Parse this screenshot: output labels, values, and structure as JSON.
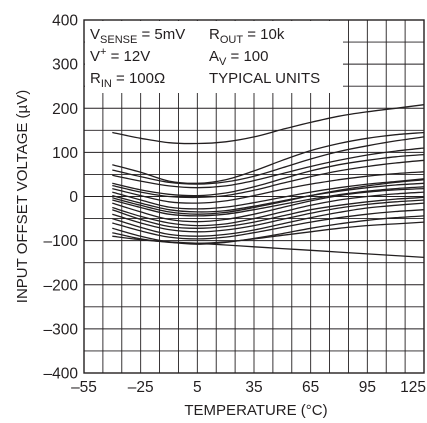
{
  "chart_data": {
    "type": "line",
    "xlabel": "TEMPERATURE (°C)",
    "ylabel": "INPUT OFFSET VOLTAGE (µV)",
    "xlim": [
      -55,
      125
    ],
    "ylim": [
      -400,
      400
    ],
    "x_ticks": [
      "–55",
      "–25",
      "5",
      "35",
      "65",
      "95",
      "125"
    ],
    "y_ticks": [
      "400",
      "300",
      "200",
      "100",
      "0",
      "–100",
      "–200",
      "–300",
      "–400"
    ],
    "grid": true,
    "legend": "none",
    "conditions": [
      {
        "name": "V",
        "sub": "SENSE",
        "sup": "",
        "value": " = 5mV"
      },
      {
        "name": "R",
        "sub": "OUT",
        "sup": "",
        "value": " = 10k"
      },
      {
        "name": "V",
        "sub": "",
        "sup": "+",
        "value": " = 12V"
      },
      {
        "name": "A",
        "sub": "V",
        "sup": "",
        "value": " = 100"
      },
      {
        "name": "R",
        "sub": "IN",
        "sup": "",
        "value": " = 100Ω"
      },
      {
        "name": "",
        "sub": "",
        "sup": "",
        "value": "TYPICAL UNITS"
      }
    ],
    "x": [
      -40,
      -25,
      -10,
      5,
      20,
      35,
      50,
      65,
      80,
      95,
      110,
      125
    ],
    "series": [
      {
        "values": [
          145,
          132,
          122,
          120,
          124,
          135,
          152,
          168,
          182,
          192,
          200,
          208
        ]
      },
      {
        "values": [
          72,
          55,
          35,
          30,
          38,
          58,
          82,
          104,
          120,
          132,
          140,
          145
        ]
      },
      {
        "values": [
          60,
          45,
          32,
          28,
          33,
          46,
          65,
          85,
          102,
          115,
          126,
          135
        ]
      },
      {
        "values": [
          48,
          35,
          24,
          20,
          24,
          36,
          52,
          68,
          82,
          94,
          103,
          110
        ]
      },
      {
        "values": [
          25,
          10,
          0,
          -2,
          2,
          14,
          30,
          45,
          58,
          68,
          76,
          82
        ]
      },
      {
        "values": [
          18,
          2,
          -12,
          -15,
          -10,
          2,
          16,
          28,
          38,
          46,
          52,
          56
        ]
      },
      {
        "values": [
          10,
          -8,
          -24,
          -28,
          -24,
          -14,
          -2,
          10,
          20,
          28,
          34,
          40
        ]
      },
      {
        "values": [
          2,
          -15,
          -30,
          -35,
          -32,
          -22,
          -10,
          2,
          12,
          20,
          26,
          30
        ]
      },
      {
        "values": [
          -8,
          -25,
          -40,
          -44,
          -40,
          -30,
          -18,
          -6,
          4,
          12,
          18,
          22
        ]
      },
      {
        "values": [
          -15,
          -35,
          -52,
          -57,
          -52,
          -40,
          -25,
          -10,
          2,
          10,
          15,
          18
        ]
      },
      {
        "values": [
          -25,
          -45,
          -60,
          -66,
          -62,
          -50,
          -35,
          -20,
          -8,
          0,
          6,
          10
        ]
      },
      {
        "values": [
          -30,
          -52,
          -68,
          -72,
          -68,
          -58,
          -44,
          -30,
          -20,
          -12,
          -6,
          -2
        ]
      },
      {
        "values": [
          -40,
          -60,
          -75,
          -80,
          -76,
          -66,
          -52,
          -38,
          -26,
          -18,
          -12,
          -8
        ]
      },
      {
        "values": [
          -50,
          -70,
          -86,
          -90,
          -86,
          -76,
          -62,
          -48,
          -36,
          -26,
          -20,
          -15
        ]
      },
      {
        "values": [
          -60,
          -78,
          -92,
          -96,
          -92,
          -82,
          -70,
          -58,
          -48,
          -40,
          -34,
          -30
        ]
      },
      {
        "values": [
          -72,
          -90,
          -103,
          -108,
          -104,
          -95,
          -84,
          -72,
          -62,
          -54,
          -48,
          -44
        ]
      },
      {
        "values": [
          -82,
          -96,
          -104,
          -106,
          -103,
          -96,
          -88,
          -80,
          -72,
          -66,
          -62,
          -58
        ]
      },
      {
        "values": [
          -90,
          -98,
          -103,
          -106,
          -110,
          -114,
          -118,
          -122,
          -126,
          -130,
          -134,
          -138
        ]
      },
      {
        "values": [
          30,
          15,
          5,
          2,
          8,
          22,
          40,
          58,
          72,
          82,
          90,
          95
        ]
      },
      {
        "values": [
          -3,
          -20,
          -35,
          -40,
          -36,
          -25,
          -12,
          2,
          14,
          24,
          32,
          38
        ]
      }
    ]
  }
}
